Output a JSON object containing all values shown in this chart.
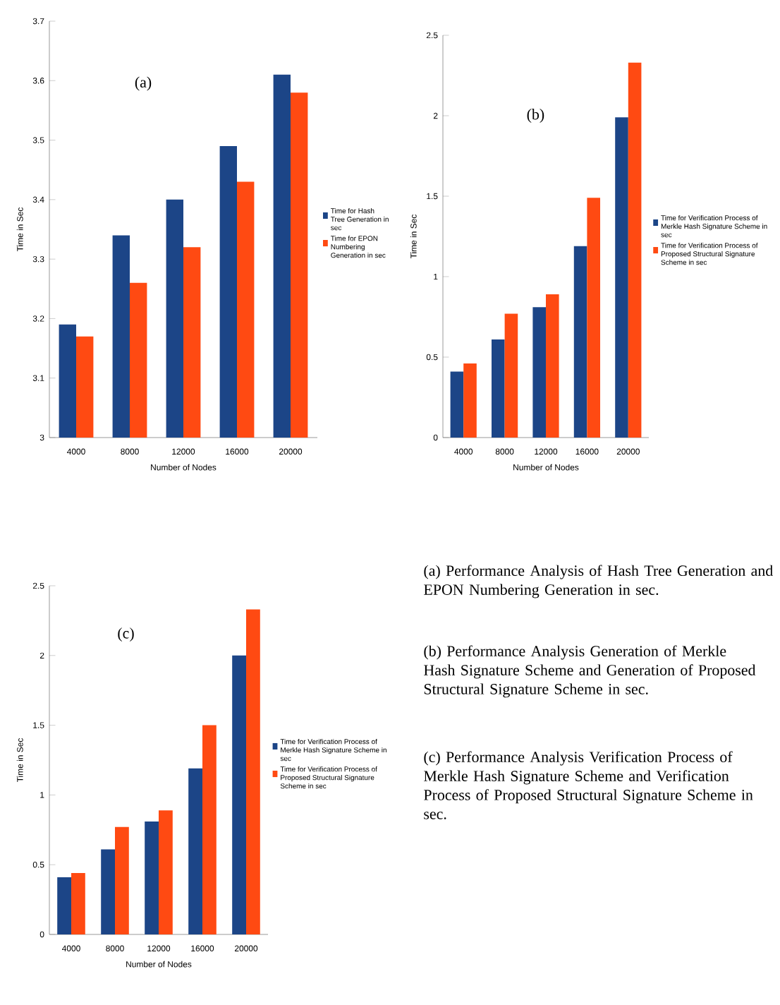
{
  "chart_data": [
    {
      "type": "bar",
      "xlabel": "Number of Nodes",
      "ylabel": "Time in Sec",
      "annotations": [
        "(a)"
      ],
      "categories": [
        "4000",
        "8000",
        "12000",
        "16000",
        "20000"
      ],
      "ylim": [
        3,
        3.7
      ],
      "yticks": [
        3,
        3.1,
        3.2,
        3.3,
        3.4,
        3.5,
        3.6,
        3.7
      ],
      "legend": "right",
      "series": [
        {
          "name": "Time for Hash Tree Generation in sec",
          "color": "#1c4587",
          "values": [
            3.19,
            3.34,
            3.4,
            3.49,
            3.61
          ]
        },
        {
          "name": "Time for EPON Numbering Generation in sec",
          "color": "#ff4a12",
          "values": [
            3.17,
            3.26,
            3.32,
            3.43,
            3.58
          ]
        }
      ]
    },
    {
      "type": "bar",
      "xlabel": "Number of Nodes",
      "ylabel": "Time in Sec",
      "annotations": [
        "(b)"
      ],
      "categories": [
        "4000",
        "8000",
        "12000",
        "16000",
        "20000"
      ],
      "ylim": [
        0,
        2.5
      ],
      "yticks": [
        0,
        0.5,
        1,
        1.5,
        2,
        2.5
      ],
      "legend": "right",
      "series": [
        {
          "name": "Time for Verification Process of Merkle Hash Signature Scheme in sec",
          "color": "#1c4587",
          "values": [
            0.41,
            0.61,
            0.81,
            1.19,
            1.99
          ]
        },
        {
          "name": "Time for Verification Process of Proposed Structural Signature Scheme in sec",
          "color": "#ff4a12",
          "values": [
            0.46,
            0.77,
            0.89,
            1.49,
            2.33
          ]
        }
      ]
    },
    {
      "type": "bar",
      "xlabel": "Number of Nodes",
      "ylabel": "Time in Sec",
      "annotations": [
        "(c)"
      ],
      "categories": [
        "4000",
        "8000",
        "12000",
        "16000",
        "20000"
      ],
      "ylim": [
        0,
        2.5
      ],
      "yticks": [
        0,
        0.5,
        1,
        1.5,
        2,
        2.5
      ],
      "legend": "right",
      "series": [
        {
          "name": "Time for Verification Process of Merkle Hash Signature Scheme in sec",
          "color": "#1c4587",
          "values": [
            0.41,
            0.61,
            0.81,
            1.19,
            2.0
          ]
        },
        {
          "name": "Time for Verification Process of Proposed Structural Signature Scheme in sec",
          "color": "#ff4a12",
          "values": [
            0.44,
            0.77,
            0.89,
            1.5,
            2.33
          ]
        }
      ]
    },
    {
      "type": "other",
      "annotations": [
        "(a) Performance Analysis of Hash Tree Generation and EPON Numbering Generation in sec.",
        "(b) Performance Analysis Generation of Merkle Hash Signature Scheme and Generation of Proposed Structural Signature Scheme in sec.",
        "(c) Performance Analysis Verification Process of Merkle Hash Signature Scheme and Verification Process of Proposed Structural Signature Scheme in sec."
      ]
    }
  ]
}
